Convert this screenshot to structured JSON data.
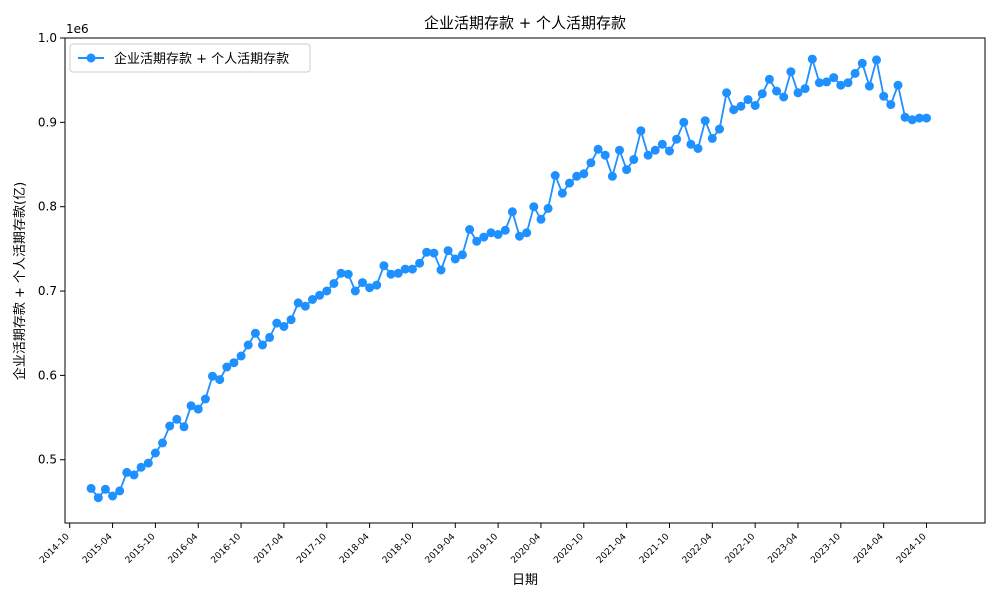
{
  "chart_data": {
    "type": "line",
    "title": "企业活期存款 + 个人活期存款",
    "xlabel": "日期",
    "ylabel": "企业活期存款 + 个人活期存款(亿)",
    "y_offset_label": "1e6",
    "ylim": [
      0.425,
      1.0
    ],
    "y_ticks": [
      0.5,
      0.6,
      0.7,
      0.8,
      0.9,
      1.0
    ],
    "y_tick_labels": [
      "0.5",
      "0.6",
      "0.7",
      "0.8",
      "0.9",
      "1.0"
    ],
    "x_tick_labels": [
      "2014-10",
      "2015-04",
      "2015-10",
      "2016-04",
      "2016-10",
      "2017-04",
      "2017-10",
      "2018-04",
      "2018-10",
      "2019-04",
      "2019-10",
      "2020-04",
      "2020-10",
      "2021-04",
      "2021-10",
      "2022-04",
      "2022-10",
      "2023-04",
      "2023-10",
      "2024-04",
      "2024-10"
    ],
    "x_start": "2014-12",
    "x_end": "2024-10",
    "grid": false,
    "legend_position": "top-left",
    "color": "#1e90ff",
    "series": [
      {
        "name": "企业活期存款 + 个人活期存款",
        "x": [
          "2015-01",
          "2015-02",
          "2015-03",
          "2015-04",
          "2015-05",
          "2015-06",
          "2015-07",
          "2015-08",
          "2015-09",
          "2015-10",
          "2015-11",
          "2015-12",
          "2016-01",
          "2016-02",
          "2016-03",
          "2016-04",
          "2016-05",
          "2016-06",
          "2016-07",
          "2016-08",
          "2016-09",
          "2016-10",
          "2016-11",
          "2016-12",
          "2017-01",
          "2017-02",
          "2017-03",
          "2017-04",
          "2017-05",
          "2017-06",
          "2017-07",
          "2017-08",
          "2017-09",
          "2017-10",
          "2017-11",
          "2017-12",
          "2018-01",
          "2018-02",
          "2018-03",
          "2018-04",
          "2018-05",
          "2018-06",
          "2018-07",
          "2018-08",
          "2018-09",
          "2018-10",
          "2018-11",
          "2018-12",
          "2019-01",
          "2019-02",
          "2019-03",
          "2019-04",
          "2019-05",
          "2019-06",
          "2019-07",
          "2019-08",
          "2019-09",
          "2019-10",
          "2019-11",
          "2019-12",
          "2020-01",
          "2020-02",
          "2020-03",
          "2020-04",
          "2020-05",
          "2020-06",
          "2020-07",
          "2020-08",
          "2020-09",
          "2020-10",
          "2020-11",
          "2020-12",
          "2021-01",
          "2021-02",
          "2021-03",
          "2021-04",
          "2021-05",
          "2021-06",
          "2021-07",
          "2021-08",
          "2021-09",
          "2021-10",
          "2021-11",
          "2021-12",
          "2022-01",
          "2022-02",
          "2022-03",
          "2022-04",
          "2022-05",
          "2022-06",
          "2022-07",
          "2022-08",
          "2022-09",
          "2022-10",
          "2022-11",
          "2022-12",
          "2023-01",
          "2023-02",
          "2023-03",
          "2023-04",
          "2023-05",
          "2023-06",
          "2023-07",
          "2023-08",
          "2023-09",
          "2023-10",
          "2023-11",
          "2023-12",
          "2024-01",
          "2024-02",
          "2024-03",
          "2024-04",
          "2024-05",
          "2024-06",
          "2024-07",
          "2024-08",
          "2024-09",
          "2024-10"
        ],
        "values": [
          0.466,
          0.455,
          0.465,
          0.457,
          0.463,
          0.485,
          0.482,
          0.491,
          0.496,
          0.508,
          0.52,
          0.54,
          0.548,
          0.539,
          0.564,
          0.56,
          0.572,
          0.599,
          0.595,
          0.61,
          0.615,
          0.623,
          0.636,
          0.65,
          0.636,
          0.645,
          0.662,
          0.658,
          0.666,
          0.686,
          0.682,
          0.69,
          0.695,
          0.7,
          0.709,
          0.721,
          0.72,
          0.7,
          0.71,
          0.704,
          0.707,
          0.73,
          0.72,
          0.721,
          0.726,
          0.726,
          0.733,
          0.746,
          0.745,
          0.725,
          0.748,
          0.738,
          0.743,
          0.773,
          0.759,
          0.764,
          0.769,
          0.767,
          0.772,
          0.794,
          0.765,
          0.769,
          0.8,
          0.785,
          0.798,
          0.837,
          0.816,
          0.828,
          0.836,
          0.839,
          0.852,
          0.868,
          0.861,
          0.836,
          0.867,
          0.844,
          0.856,
          0.89,
          0.861,
          0.867,
          0.874,
          0.866,
          0.88,
          0.9,
          0.874,
          0.869,
          0.902,
          0.881,
          0.892,
          0.935,
          0.915,
          0.919,
          0.927,
          0.92,
          0.934,
          0.951,
          0.937,
          0.93,
          0.96,
          0.935,
          0.94,
          0.975,
          0.947,
          0.948,
          0.953,
          0.944,
          0.947,
          0.958,
          0.97,
          0.943,
          0.974,
          0.931,
          0.921,
          0.944,
          0.906,
          0.903,
          0.905,
          0.905
        ]
      }
    ]
  }
}
